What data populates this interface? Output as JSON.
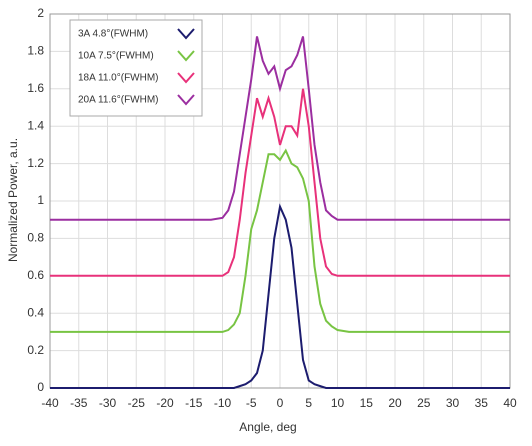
{
  "chart_data": {
    "type": "line",
    "x_label": "Angle, deg",
    "y_label": "Normalized Power, a.u.",
    "x": [
      -40,
      -30,
      -20,
      -15,
      -12,
      -10,
      -9,
      -8,
      -7,
      -6,
      -5,
      -4,
      -3,
      -2,
      -1,
      0,
      1,
      2,
      3,
      4,
      5,
      6,
      7,
      8,
      9,
      10,
      12,
      15,
      20,
      30,
      40
    ],
    "series": [
      {
        "name": "3A 4.8°(FWHM)",
        "color": "#1c1c6e",
        "values": [
          0,
          0,
          0,
          0,
          0,
          0,
          0,
          0,
          0.01,
          0.02,
          0.04,
          0.08,
          0.2,
          0.5,
          0.8,
          0.97,
          0.9,
          0.75,
          0.45,
          0.15,
          0.04,
          0.02,
          0.01,
          0,
          0,
          0,
          0,
          0,
          0,
          0,
          0
        ]
      },
      {
        "name": "10A 7.5°(FWHM)",
        "color": "#78c443",
        "values": [
          0.3,
          0.3,
          0.3,
          0.3,
          0.3,
          0.3,
          0.31,
          0.34,
          0.4,
          0.6,
          0.85,
          0.95,
          1.1,
          1.25,
          1.25,
          1.22,
          1.27,
          1.2,
          1.18,
          1.12,
          1.0,
          0.65,
          0.45,
          0.36,
          0.33,
          0.31,
          0.3,
          0.3,
          0.3,
          0.3,
          0.3
        ]
      },
      {
        "name": "18A 11.0°(FWHM)",
        "color": "#e8317a",
        "values": [
          0.6,
          0.6,
          0.6,
          0.6,
          0.6,
          0.6,
          0.62,
          0.7,
          0.9,
          1.15,
          1.35,
          1.55,
          1.45,
          1.55,
          1.45,
          1.3,
          1.4,
          1.4,
          1.35,
          1.6,
          1.4,
          1.1,
          0.8,
          0.65,
          0.61,
          0.6,
          0.6,
          0.6,
          0.6,
          0.6,
          0.6
        ]
      },
      {
        "name": "20A 11.6°(FWHM)",
        "color": "#9b2ea0",
        "values": [
          0.9,
          0.9,
          0.9,
          0.9,
          0.9,
          0.91,
          0.95,
          1.05,
          1.25,
          1.45,
          1.65,
          1.88,
          1.75,
          1.68,
          1.72,
          1.6,
          1.7,
          1.72,
          1.78,
          1.88,
          1.6,
          1.3,
          1.1,
          0.95,
          0.92,
          0.9,
          0.9,
          0.9,
          0.9,
          0.9,
          0.9
        ]
      }
    ],
    "xlim": [
      -40,
      40
    ],
    "xticks": [
      -40,
      -35,
      -30,
      -25,
      -20,
      -15,
      -10,
      -5,
      0,
      5,
      10,
      15,
      20,
      25,
      30,
      35,
      40
    ],
    "ylim": [
      0,
      2
    ],
    "yticks": [
      0,
      0.2,
      0.4,
      0.6,
      0.8,
      1,
      1.2,
      1.4,
      1.6,
      1.8,
      2
    ],
    "grid": true
  }
}
